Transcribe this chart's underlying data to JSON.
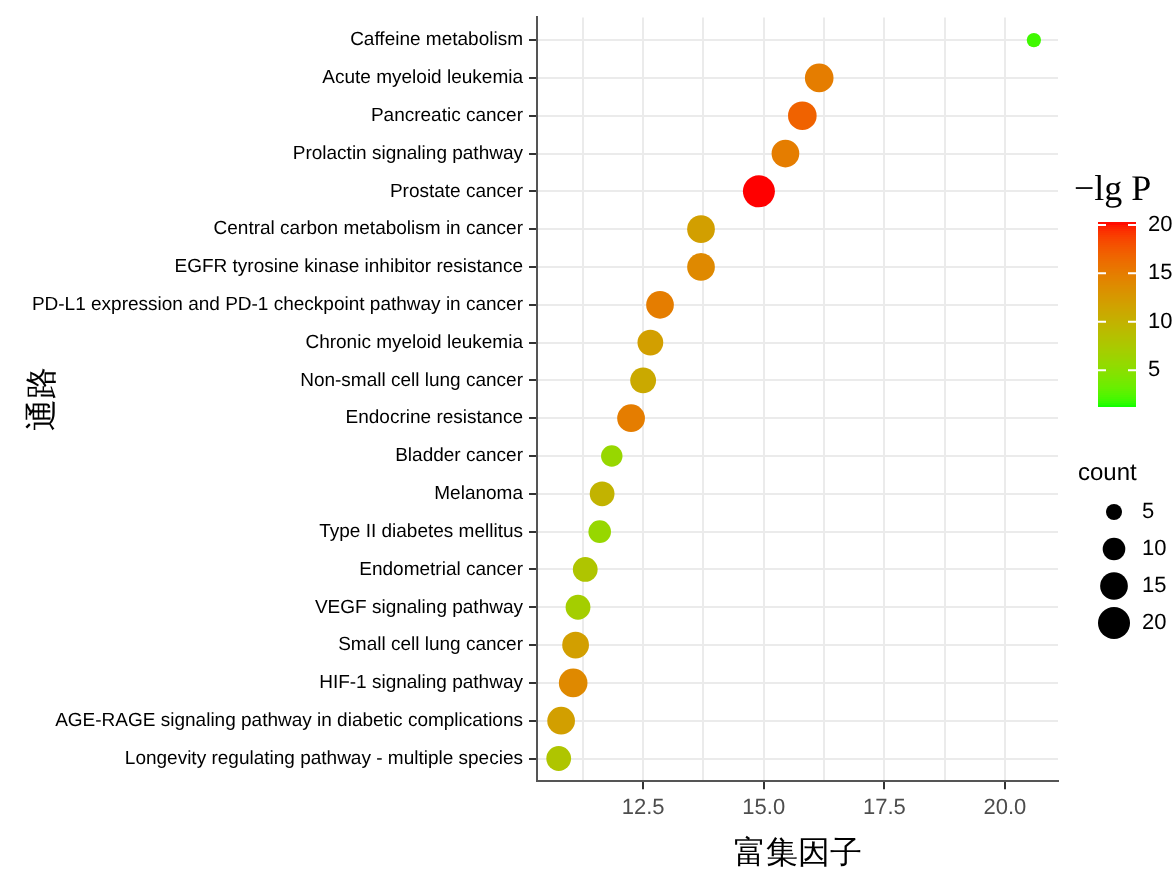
{
  "chart_data": {
    "type": "bubble",
    "orientation": "horizontal",
    "xlabel": "富集因子",
    "ylabel": "通路",
    "clabel": "−lg P",
    "legend_title": "count",
    "categories": [
      "Caffeine metabolism",
      "Acute myeloid leukemia",
      "Pancreatic cancer",
      "Prolactin signaling pathway",
      "Prostate cancer",
      "Central carbon metabolism in cancer",
      "EGFR tyrosine kinase inhibitor resistance",
      "PD-L1 expression and PD-1 checkpoint pathway in cancer",
      "Chronic myeloid leukemia",
      "Non-small cell lung cancer",
      "Endocrine resistance",
      "Bladder cancer",
      "Melanoma",
      "Type II diabetes mellitus",
      "Endometrial cancer",
      "VEGF signaling pathway",
      "Small cell lung cancer",
      "HIF-1 signaling pathway",
      "AGE-RAGE signaling pathway in diabetic complications",
      "Longevity regulating pathway - multiple species"
    ],
    "values": [
      20.6,
      16.15,
      15.8,
      15.45,
      14.9,
      13.7,
      13.7,
      12.85,
      12.65,
      12.5,
      12.25,
      11.85,
      11.65,
      11.6,
      11.3,
      11.15,
      11.1,
      11.05,
      10.8,
      10.75
    ],
    "sizes": [
      4,
      16,
      16,
      15,
      20,
      15,
      15,
      15,
      13,
      13,
      15,
      9,
      12,
      10,
      12,
      12,
      14,
      16,
      15,
      12
    ],
    "size_legend": [
      5,
      10,
      15,
      20
    ],
    "cvalues": [
      2,
      15,
      17,
      15,
      20.3,
      12,
      14,
      15,
      12,
      11,
      15,
      6,
      10,
      6,
      8,
      7,
      12,
      14,
      12,
      8
    ],
    "clim": [
      1.3,
      20.3
    ],
    "cticks": [
      5,
      10,
      15,
      20
    ],
    "xlim": [
      10.3,
      21.1
    ],
    "xticks": [
      {
        "value": 11.25,
        "label": null
      },
      12.5,
      {
        "value": 13.75,
        "label": null
      },
      {
        "value": 15,
        "label": "15.0"
      },
      {
        "value": 16.25,
        "label": null
      },
      17.5,
      {
        "value": 18.75,
        "label": null
      },
      {
        "value": 20,
        "label": "20.0"
      }
    ],
    "grid": true
  }
}
